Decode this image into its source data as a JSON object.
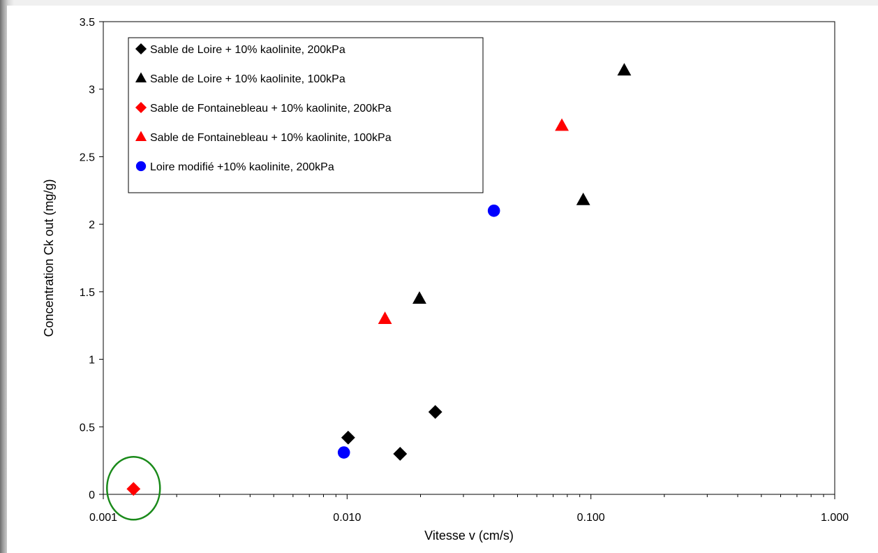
{
  "chart_data": {
    "type": "scatter",
    "title": "",
    "xlabel": "Vitesse v (cm/s)",
    "ylabel": "Concentration Ck out (mg/g)",
    "xscale": "log",
    "xlim": [
      0.001,
      1.0
    ],
    "ylim": [
      0,
      3.5
    ],
    "x_ticks": [
      0.001,
      0.01,
      0.1,
      1.0
    ],
    "x_tick_labels": [
      "0.001",
      "0.010",
      "0.100",
      "1.000"
    ],
    "y_ticks": [
      0,
      0.5,
      1,
      1.5,
      2,
      2.5,
      3,
      3.5
    ],
    "y_tick_labels": [
      "0",
      "0.5",
      "1",
      "1.5",
      "2",
      "2.5",
      "3",
      "3.5"
    ],
    "grid": false,
    "legend_position": "top-left",
    "series": [
      {
        "name": "Sable de Loire + 10% kaolinite, 200kPa",
        "marker": "diamond",
        "color": "#000000",
        "points": [
          [
            0.0101,
            0.42
          ],
          [
            0.0165,
            0.3
          ],
          [
            0.023,
            0.61
          ]
        ]
      },
      {
        "name": "Sable de Loire + 10% kaolinite, 100kPa",
        "marker": "triangle",
        "color": "#000000",
        "points": [
          [
            0.0198,
            1.45
          ],
          [
            0.093,
            2.18
          ],
          [
            0.137,
            3.14
          ]
        ]
      },
      {
        "name": "Sable de Fontainebleau + 10% kaolinite, 200kPa",
        "marker": "diamond",
        "color": "#ff0000",
        "points": [
          [
            0.00133,
            0.04
          ]
        ]
      },
      {
        "name": "Sable de Fontainebleau + 10% kaolinite, 100kPa",
        "marker": "triangle",
        "color": "#ff0000",
        "points": [
          [
            0.0143,
            1.3
          ],
          [
            0.076,
            2.73
          ]
        ]
      },
      {
        "name": "Loire modifié +10% kaolinite, 200kPa",
        "marker": "circle",
        "color": "#0000ff",
        "points": [
          [
            0.0097,
            0.31
          ],
          [
            0.04,
            2.1
          ]
        ]
      }
    ],
    "annotations": [
      {
        "type": "ellipse",
        "color": "#1a8a1a",
        "center": [
          0.00133,
          0.04
        ]
      }
    ]
  }
}
